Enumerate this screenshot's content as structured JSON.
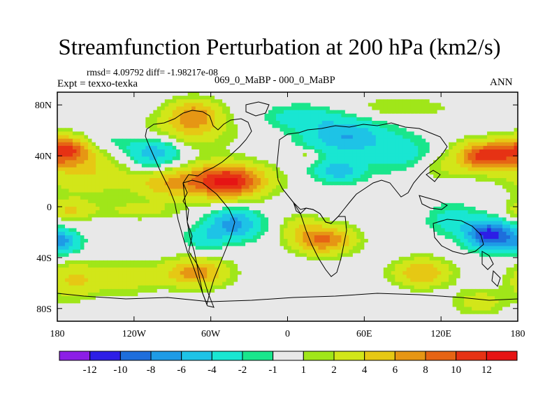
{
  "chart_data": {
    "type": "heatmap",
    "title": "Streamfunction Perturbation at 200 hPa (km2/s)",
    "stats_line": "rmsd= 4.09792 diff= -1.98217e-08",
    "left_label": "Expt = texxo-texka",
    "center_label": "069_0_MaBP - 000_0_MaBP",
    "right_label": "ANN",
    "xlim": [
      -180,
      180
    ],
    "ylim": [
      -90,
      90
    ],
    "x_ticks": [
      {
        "value": -180,
        "label": "180"
      },
      {
        "value": -120,
        "label": "120W"
      },
      {
        "value": -60,
        "label": "60W"
      },
      {
        "value": 0,
        "label": "0"
      },
      {
        "value": 60,
        "label": "60E"
      },
      {
        "value": 120,
        "label": "120E"
      },
      {
        "value": 180,
        "label": "180"
      }
    ],
    "y_ticks": [
      {
        "value": 80,
        "label": "80N"
      },
      {
        "value": 40,
        "label": "40N"
      },
      {
        "value": 0,
        "label": "0"
      },
      {
        "value": -40,
        "label": "40S"
      },
      {
        "value": -80,
        "label": "80S"
      }
    ],
    "colorbar": {
      "boundaries": [
        "-12",
        "-10",
        "-8",
        "-6",
        "-4",
        "-2",
        "-1",
        "1",
        "2",
        "4",
        "6",
        "8",
        "10",
        "12"
      ],
      "colors": [
        "#8c1ee6",
        "#2d1ee6",
        "#1e6edc",
        "#1e9be6",
        "#1ec3e6",
        "#19e6d2",
        "#19e68c",
        "#e8e8e8",
        "#a0e619",
        "#d2e619",
        "#e6c814",
        "#e69614",
        "#e66414",
        "#e63214",
        "#e61414"
      ]
    },
    "field_centers": [
      {
        "lon": -172,
        "lat": 45,
        "value": 9,
        "rlon": 18,
        "rlat": 11
      },
      {
        "lon": -157,
        "lat": 28,
        "value": 4,
        "rlon": 35,
        "rlat": 20
      },
      {
        "lon": -73,
        "lat": 72,
        "value": 7,
        "rlon": 20,
        "rlat": 12
      },
      {
        "lon": -83,
        "lat": 57,
        "value": 3,
        "rlon": 40,
        "rlat": 14
      },
      {
        "lon": -105,
        "lat": 43,
        "value": -6,
        "rlon": 22,
        "rlat": 13
      },
      {
        "lon": -145,
        "lat": 52,
        "value": -2,
        "rlon": 25,
        "rlat": 11
      },
      {
        "lon": -48,
        "lat": 20,
        "value": 13,
        "rlon": 30,
        "rlat": 13
      },
      {
        "lon": -95,
        "lat": 18,
        "value": 5,
        "rlon": 25,
        "rlat": 12
      },
      {
        "lon": -176,
        "lat": -28,
        "value": -6,
        "rlon": 14,
        "rlat": 9
      },
      {
        "lon": -170,
        "lat": -3,
        "value": 4,
        "rlon": 18,
        "rlat": 8
      },
      {
        "lon": -115,
        "lat": -3,
        "value": 2.5,
        "rlon": 30,
        "rlat": 7
      },
      {
        "lon": -168,
        "lat": -58,
        "value": 4,
        "rlon": 20,
        "rlat": 14
      },
      {
        "lon": -72,
        "lat": -52,
        "value": 7,
        "rlon": 25,
        "rlat": 11
      },
      {
        "lon": -128,
        "lat": -56,
        "value": 3,
        "rlon": 28,
        "rlat": 13
      },
      {
        "lon": -42,
        "lat": -14,
        "value": -7,
        "rlon": 20,
        "rlat": 12
      },
      {
        "lon": -65,
        "lat": -25,
        "value": -3,
        "rlon": 14,
        "rlat": 10
      },
      {
        "lon": 28,
        "lat": -26,
        "value": 8.5,
        "rlon": 23,
        "rlat": 11
      },
      {
        "lon": 10,
        "lat": -15,
        "value": 2.5,
        "rlon": 14,
        "rlat": 10
      },
      {
        "lon": 105,
        "lat": -52,
        "value": 6,
        "rlon": 22,
        "rlat": 11
      },
      {
        "lon": 150,
        "lat": -75,
        "value": 3,
        "rlon": 20,
        "rlat": 10
      },
      {
        "lon": 158,
        "lat": -22,
        "value": -11,
        "rlon": 18,
        "rlat": 11
      },
      {
        "lon": 130,
        "lat": -10,
        "value": -3,
        "rlon": 20,
        "rlat": 12
      },
      {
        "lon": 155,
        "lat": 40,
        "value": 11,
        "rlon": 22,
        "rlat": 11
      },
      {
        "lon": 120,
        "lat": 30,
        "value": 2,
        "rlon": 22,
        "rlat": 10
      },
      {
        "lon": 45,
        "lat": 55,
        "value": -6,
        "rlon": 30,
        "rlat": 14
      },
      {
        "lon": 40,
        "lat": 28,
        "value": -5,
        "rlon": 20,
        "rlat": 9
      },
      {
        "lon": 88,
        "lat": 42,
        "value": -3,
        "rlon": 25,
        "rlat": 15
      },
      {
        "lon": 90,
        "lat": 78,
        "value": 2,
        "rlon": 40,
        "rlat": 8
      },
      {
        "lon": 10,
        "lat": 70,
        "value": -3,
        "rlon": 28,
        "rlat": 10
      },
      {
        "lon": 15,
        "lat": 40,
        "value": 2,
        "rlon": 8,
        "rlat": 5
      }
    ]
  }
}
